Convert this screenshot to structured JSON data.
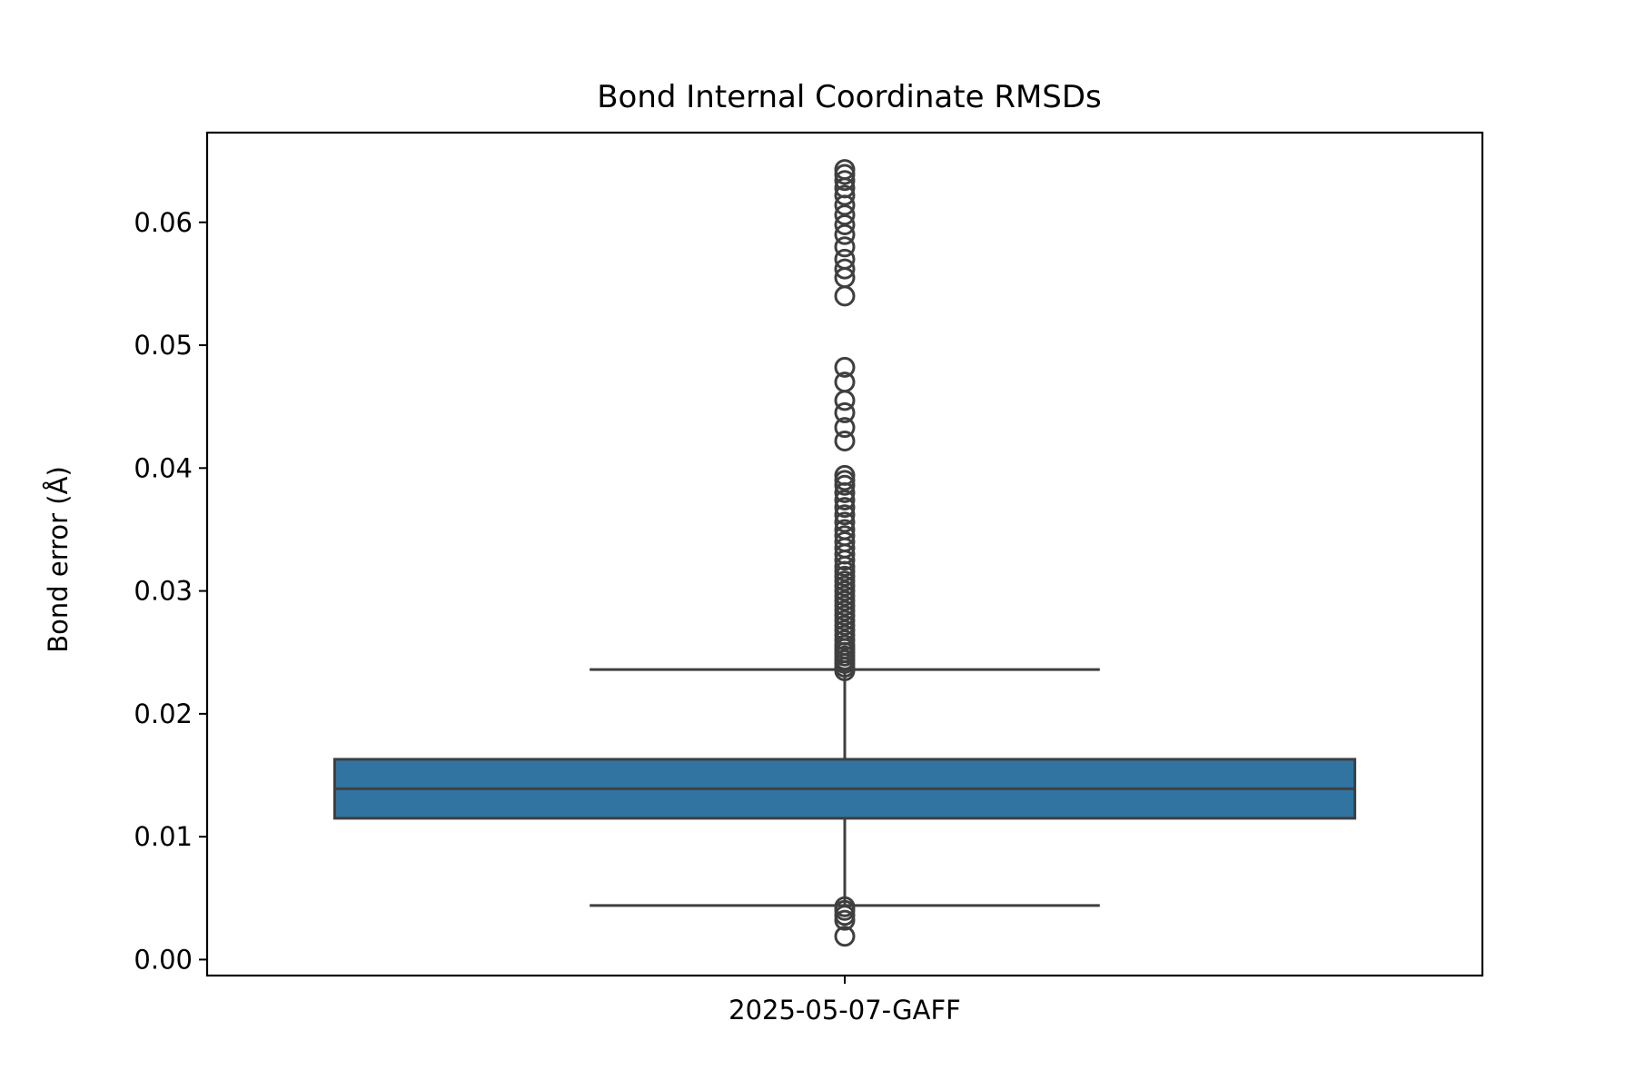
{
  "chart_data": {
    "type": "box",
    "title": "Bond Internal Coordinate RMSDs",
    "xlabel": "",
    "ylabel": "Bond error (Å)",
    "categories": [
      "2025-05-07-GAFF"
    ],
    "ylim": [
      -0.0013,
      0.0673
    ],
    "yticks": [
      0.0,
      0.01,
      0.02,
      0.03,
      0.04,
      0.05,
      0.06
    ],
    "ytick_labels": [
      "0.00",
      "0.01",
      "0.02",
      "0.03",
      "0.04",
      "0.05",
      "0.06"
    ],
    "grid": false,
    "box_color": "#3274a1",
    "line_color": "#3f3f3f",
    "boxes": [
      {
        "category": "2025-05-07-GAFF",
        "whisker_low": 0.0044,
        "q1": 0.0115,
        "median": 0.0139,
        "q3": 0.0163,
        "whisker_high": 0.0236,
        "outliers": [
          0.0019,
          0.0032,
          0.0036,
          0.004,
          0.0043,
          0.0235,
          0.0238,
          0.0241,
          0.0244,
          0.0247,
          0.025,
          0.0253,
          0.0256,
          0.026,
          0.0264,
          0.0268,
          0.0272,
          0.0276,
          0.028,
          0.0284,
          0.0288,
          0.0292,
          0.0296,
          0.03,
          0.0304,
          0.0308,
          0.0312,
          0.0316,
          0.032,
          0.0325,
          0.033,
          0.0335,
          0.034,
          0.0345,
          0.035,
          0.0356,
          0.0362,
          0.0368,
          0.0374,
          0.038,
          0.0386,
          0.039,
          0.0394,
          0.0422,
          0.0433,
          0.0445,
          0.0455,
          0.047,
          0.0482,
          0.054,
          0.0555,
          0.0562,
          0.057,
          0.058,
          0.059,
          0.0598,
          0.0606,
          0.0614,
          0.0622,
          0.0628,
          0.0634,
          0.0639,
          0.0643
        ]
      }
    ]
  }
}
